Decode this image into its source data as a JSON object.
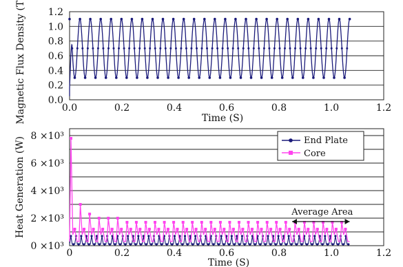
{
  "chart_data": [
    {
      "type": "line",
      "title": "",
      "xlabel": "Time (S)",
      "ylabel": "Magnetic Flux Density (T)",
      "xlim": [
        0,
        1.2
      ],
      "ylim": [
        0,
        1.2
      ],
      "x_ticks": [
        "0.0",
        "0.2",
        "0.4",
        "0.6",
        "0.8",
        "1.0",
        "1.2"
      ],
      "y_ticks": [
        "0.0",
        "0.2",
        "0.4",
        "0.6",
        "0.8",
        "1.0",
        "1.2"
      ],
      "grid": "horizontal",
      "legend": "none",
      "series": [
        {
          "color": "#1a1a7a",
          "waveform": {
            "x_start": 0.0,
            "x_end": 1.07,
            "periods": 27,
            "min": 0.3,
            "max": 1.1,
            "mid": 0.7,
            "start_value": 0.05
          }
        }
      ]
    },
    {
      "type": "line",
      "title": "",
      "xlabel": "Time (S)",
      "ylabel": "Heat Generation (W)",
      "xlim": [
        0,
        1.2
      ],
      "ylim": [
        0,
        8500
      ],
      "x_ticks": [
        "0",
        "0.2",
        "0.4",
        "0.6",
        "0.8",
        "1.0",
        "1.2"
      ],
      "y_ticks": [
        {
          "value": 0,
          "label": "0 ×10³"
        },
        {
          "value": 2000,
          "label": "2 ×10³"
        },
        {
          "value": 4000,
          "label": "4 ×10³"
        },
        {
          "value": 6000,
          "label": "6 ×10³"
        },
        {
          "value": 8000,
          "label": "8 ×10³"
        }
      ],
      "grid": "horizontal",
      "legend": "top-right",
      "series": [
        {
          "name": "End Plate",
          "color": "#1a1a7a",
          "marker": "circle",
          "waveform": {
            "x_start": 0.0,
            "x_end": 1.07,
            "pulses": 54,
            "peak": 700,
            "base": 100
          }
        },
        {
          "name": "Core",
          "color": "#ff44ee",
          "marker": "square",
          "waveform": {
            "x_start": 0.0,
            "x_end": 1.07,
            "pulses": 30,
            "first_peak": 7800,
            "second_peak": 3000,
            "steady_peak": 1700,
            "steady_low": 300
          }
        }
      ],
      "annotations": [
        {
          "text": "Average Area",
          "x_from": 0.85,
          "x_to": 1.07,
          "y": 1750
        }
      ]
    }
  ]
}
